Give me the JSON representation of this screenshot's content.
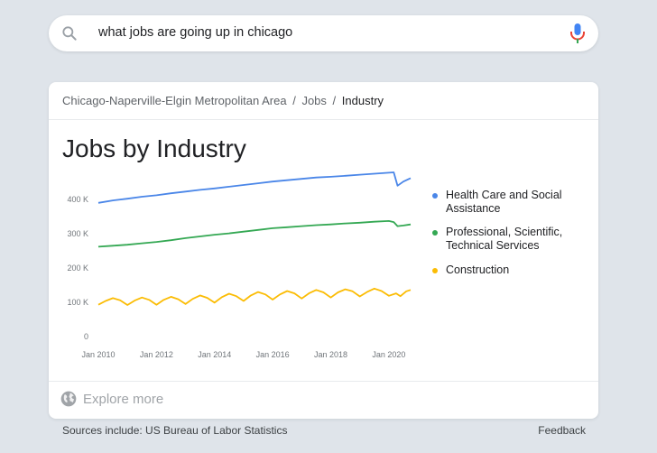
{
  "search": {
    "query": "what jobs are going up in chicago"
  },
  "card": {
    "breadcrumb": {
      "area": "Chicago-Naperville-Elgin Metropolitan Area",
      "jobs": "Jobs",
      "current": "Industry",
      "separator": "/"
    },
    "title": "Jobs by Industry",
    "explore_label": "Explore more"
  },
  "footer": {
    "sources": "Sources include: US Bureau of Labor Statistics",
    "feedback": "Feedback"
  },
  "colors": {
    "health": "#4a86e8",
    "professional": "#34a853",
    "construction": "#fbbc04",
    "axis_text": "#70757a",
    "gridline": "#e8eaed"
  },
  "chart_data": {
    "type": "line",
    "title": "Jobs by Industry",
    "xlabel": "",
    "ylabel": "",
    "ylim": [
      0,
      500000
    ],
    "xlim": [
      2010,
      2020.75
    ],
    "y_ticks": [
      0,
      100000,
      200000,
      300000,
      400000
    ],
    "y_tick_labels": [
      "0",
      "100 K",
      "200 K",
      "300 K",
      "400 K"
    ],
    "x_ticks": [
      2010,
      2012,
      2014,
      2016,
      2018,
      2020
    ],
    "x_tick_labels": [
      "Jan 2010",
      "Jan 2012",
      "Jan 2014",
      "Jan 2016",
      "Jan 2018",
      "Jan 2020"
    ],
    "series": [
      {
        "name": "Health Care and Social Assistance",
        "color": "#4a86e8",
        "x": [
          2010,
          2010.5,
          2011,
          2011.5,
          2012,
          2012.5,
          2013,
          2013.5,
          2014,
          2014.5,
          2015,
          2015.5,
          2016,
          2016.5,
          2017,
          2017.5,
          2018,
          2018.5,
          2019,
          2019.5,
          2020,
          2020.17,
          2020.3,
          2020.5,
          2020.75
        ],
        "values": [
          390000,
          397000,
          402000,
          408000,
          412000,
          418000,
          423000,
          428000,
          432000,
          437000,
          442000,
          447000,
          452000,
          456000,
          460000,
          464000,
          466000,
          469000,
          472000,
          475000,
          478000,
          479000,
          440000,
          452000,
          462000
        ]
      },
      {
        "name": "Professional, Scientific, Technical Services",
        "color": "#34a853",
        "x": [
          2010,
          2010.5,
          2011,
          2011.5,
          2012,
          2012.5,
          2013,
          2013.5,
          2014,
          2014.5,
          2015,
          2015.5,
          2016,
          2016.5,
          2017,
          2017.5,
          2018,
          2018.5,
          2019,
          2019.5,
          2020,
          2020.17,
          2020.3,
          2020.5,
          2020.75
        ],
        "values": [
          262000,
          265000,
          268000,
          272000,
          276000,
          281000,
          287000,
          292000,
          297000,
          301000,
          306000,
          311000,
          316000,
          319000,
          322000,
          325000,
          327000,
          330000,
          332000,
          335000,
          337000,
          334000,
          322000,
          324000,
          327000
        ]
      },
      {
        "name": "Construction",
        "color": "#fbbc04",
        "x": [
          2010,
          2010.25,
          2010.5,
          2010.75,
          2011,
          2011.25,
          2011.5,
          2011.75,
          2012,
          2012.25,
          2012.5,
          2012.75,
          2013,
          2013.25,
          2013.5,
          2013.75,
          2014,
          2014.25,
          2014.5,
          2014.75,
          2015,
          2015.25,
          2015.5,
          2015.75,
          2016,
          2016.25,
          2016.5,
          2016.75,
          2017,
          2017.25,
          2017.5,
          2017.75,
          2018,
          2018.25,
          2018.5,
          2018.75,
          2019,
          2019.25,
          2019.5,
          2019.75,
          2020,
          2020.25,
          2020.4,
          2020.6,
          2020.75
        ],
        "values": [
          93000,
          104000,
          112000,
          106000,
          92000,
          105000,
          114000,
          107000,
          93000,
          107000,
          116000,
          109000,
          95000,
          110000,
          120000,
          113000,
          99000,
          115000,
          125000,
          118000,
          104000,
          120000,
          130000,
          123000,
          108000,
          123000,
          133000,
          126000,
          111000,
          126000,
          136000,
          129000,
          114000,
          129000,
          138000,
          132000,
          117000,
          130000,
          140000,
          133000,
          119000,
          126000,
          118000,
          132000,
          136000
        ]
      }
    ],
    "legend": [
      "Health Care and Social Assistance",
      "Professional, Scientific, Technical Services",
      "Construction"
    ],
    "legend_placement": "right",
    "grid": false
  },
  "legend_labels": {
    "health": "Health Care and Social Assistance",
    "professional": "Professional, Scientific, Technical Services",
    "construction": "Construction"
  }
}
